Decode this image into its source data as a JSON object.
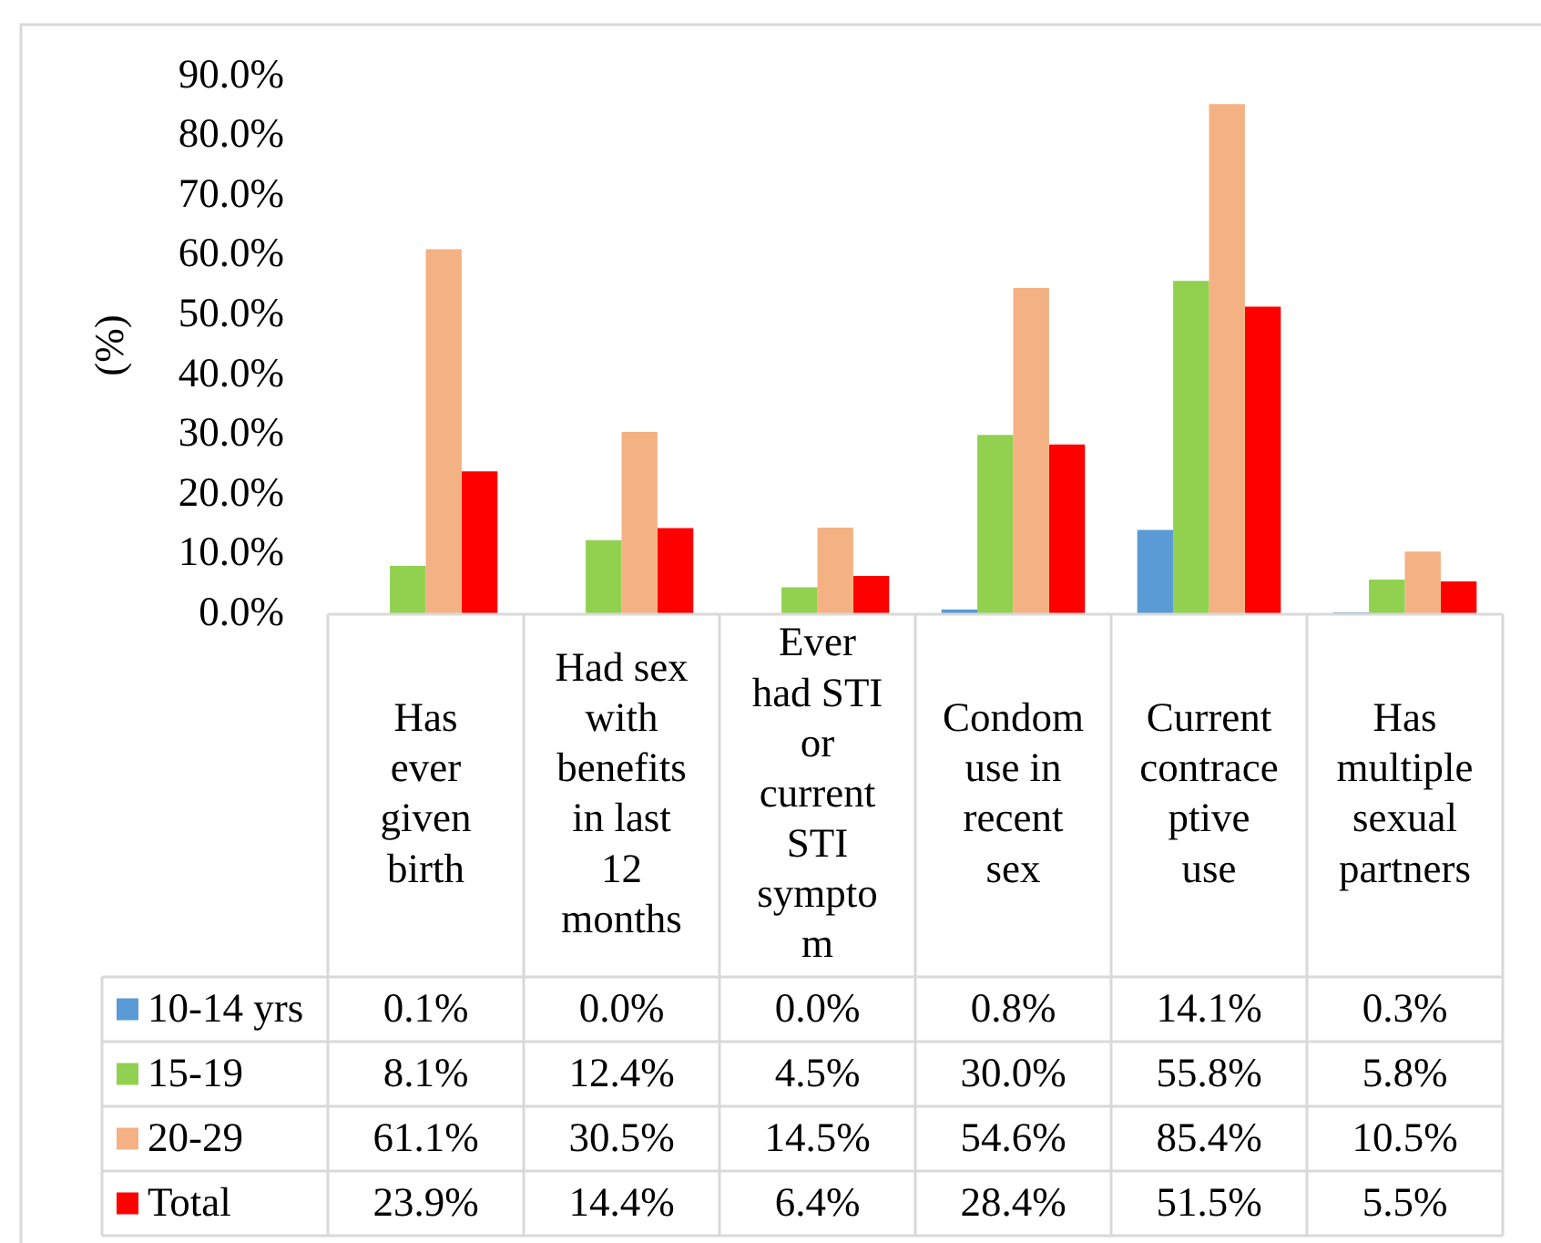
{
  "chart_data": {
    "type": "bar",
    "ylabel": "(%)",
    "categories": [
      "Has ever given birth",
      "Had sex with benefits in last 12 months",
      "Ever had STI or current STI symptom",
      "Condom use in recent sex",
      "Current contraceptive use",
      "Has multiple sexual partners"
    ],
    "series": [
      {
        "name": "10-14 yrs",
        "color": "#5b9bd5",
        "values": [
          0.1,
          0.0,
          0.0,
          0.8,
          14.1,
          0.3
        ],
        "value_labels": [
          "0.1%",
          "0.0%",
          "0.0%",
          "0.8%",
          "14.1%",
          "0.3%"
        ]
      },
      {
        "name": "15-19",
        "color": "#92d050",
        "values": [
          8.1,
          12.4,
          4.5,
          30.0,
          55.8,
          5.8
        ],
        "value_labels": [
          "8.1%",
          "12.4%",
          "4.5%",
          "30.0%",
          "55.8%",
          "5.8%"
        ]
      },
      {
        "name": "20-29",
        "color": "#f4b183",
        "values": [
          61.1,
          30.5,
          14.5,
          54.6,
          85.4,
          10.5
        ],
        "value_labels": [
          "61.1%",
          "30.5%",
          "14.5%",
          "54.6%",
          "85.4%",
          "10.5%"
        ]
      },
      {
        "name": "Total",
        "color": "#ff0000",
        "values": [
          23.9,
          14.4,
          6.4,
          28.4,
          51.5,
          5.5
        ],
        "value_labels": [
          "23.9%",
          "14.4%",
          "6.4%",
          "28.4%",
          "51.5%",
          "5.5%"
        ]
      }
    ],
    "ylim": [
      0,
      90
    ],
    "yticks": [
      {
        "value": 0,
        "label": "0.0%"
      },
      {
        "value": 10,
        "label": "10.0%"
      },
      {
        "value": 20,
        "label": "20.0%"
      },
      {
        "value": 30,
        "label": "30.0%"
      },
      {
        "value": 40,
        "label": "40.0%"
      },
      {
        "value": 50,
        "label": "50.0%"
      },
      {
        "value": 60,
        "label": "60.0%"
      },
      {
        "value": 70,
        "label": "70.0%"
      },
      {
        "value": 80,
        "label": "80.0%"
      },
      {
        "value": 90,
        "label": "90.0%"
      }
    ],
    "legend": "bottom"
  }
}
